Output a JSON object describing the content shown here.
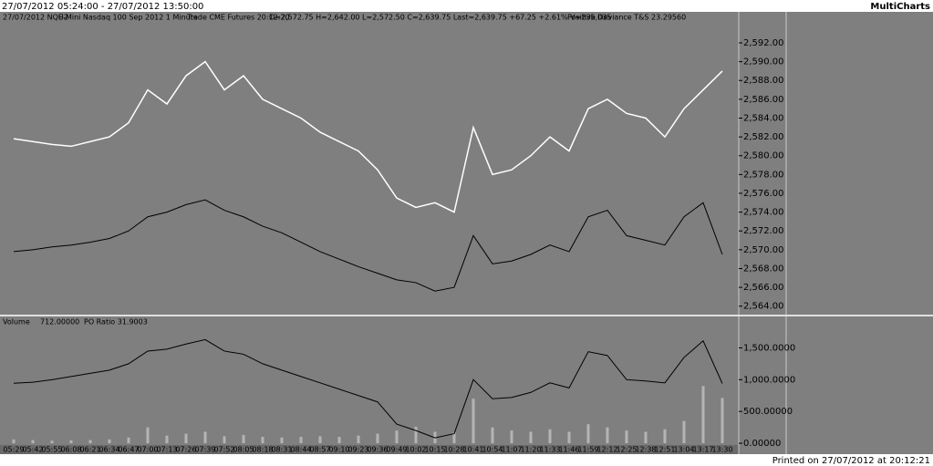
{
  "window": {
    "title": "27/07/2012 05:24:00 - 27/07/2012 13:50:00",
    "app": "MultiCharts",
    "footer": "Printed on 27/07/2012 at 20:12:21"
  },
  "chart_data": [
    {
      "type": "line",
      "info": [
        "27/07/2012 NQU2",
        "E-Mini Nasdaq 100 Sep 2012 1 Minute",
        "Trade CME Futures 20:12:20",
        "O=2,572.75 H=2,642.00 L=2,572.50 C=2,639.75 Last=2,639.75 +67.25 +2.61% V=235,035",
        "Positive Deviance T&S 23.29560"
      ],
      "series": [
        {
          "name": "NQU2",
          "color": "#ffffff",
          "values": [
            2581.8,
            2581.5,
            2581.2,
            2581.0,
            2581.5,
            2582.0,
            2583.5,
            2587,
            2585.5,
            2588.5,
            2590,
            2587,
            2588.5,
            2586,
            2585,
            2584,
            2582.5,
            2581.5,
            2580.5,
            2578.5,
            2575.5,
            2574.5,
            2575,
            2574,
            2583,
            2578,
            2578.5,
            2580,
            2582,
            2580.5,
            2585,
            2586,
            2584.5,
            2584,
            2582,
            2585,
            2587,
            2589
          ]
        },
        {
          "name": "Positive Deviance T&S",
          "color": "#000000",
          "values": [
            2569.8,
            2570.0,
            2570.3,
            2570.5,
            2570.8,
            2571.2,
            2572.0,
            2573.5,
            2574.0,
            2574.8,
            2575.3,
            2574.2,
            2573.5,
            2572.5,
            2571.8,
            2570.8,
            2569.8,
            2569.0,
            2568.2,
            2567.5,
            2566.8,
            2566.5,
            2565.6,
            2566.0,
            2571.5,
            2568.5,
            2568.8,
            2569.5,
            2570.5,
            2569.8,
            2573.5,
            2574.2,
            2571.5,
            2571.0,
            2570.5,
            2573.5,
            2575.0,
            2569.5
          ]
        }
      ],
      "ylim": [
        2563.1,
        2595.2
      ],
      "yticks": [
        {
          "value": 2564,
          "label": "2,564.00"
        },
        {
          "value": 2566,
          "label": "2,566.00"
        },
        {
          "value": 2568,
          "label": "2,568.00"
        },
        {
          "value": 2570,
          "label": "2,570.00"
        },
        {
          "value": 2572,
          "label": "2,572.00"
        },
        {
          "value": 2574,
          "label": "2,574.00"
        },
        {
          "value": 2576,
          "label": "2,576.00"
        },
        {
          "value": 2578,
          "label": "2,578.00"
        },
        {
          "value": 2580,
          "label": "2,580.00"
        },
        {
          "value": 2582,
          "label": "2,582.00"
        },
        {
          "value": 2584,
          "label": "2,584.00"
        },
        {
          "value": 2586,
          "label": "2,586.00"
        },
        {
          "value": 2588,
          "label": "2,588.00"
        },
        {
          "value": 2590,
          "label": "2,590.00"
        },
        {
          "value": 2592,
          "label": "2,592.00"
        }
      ]
    },
    {
      "type": "bar",
      "info": [
        "Volume",
        "712.00000",
        "PO Ratio 31.9003"
      ],
      "categories": [
        "05:29",
        "05:42",
        "05:55",
        "06:08",
        "06:21",
        "06:34",
        "06:47",
        "07:00",
        "07:13",
        "07:26",
        "07:39",
        "07:52",
        "08:05",
        "08:18",
        "08:31",
        "08:44",
        "08:57",
        "09:10",
        "09:23",
        "09:36",
        "09:49",
        "10:02",
        "10:15",
        "10:28",
        "10:41",
        "10:54",
        "11:07",
        "11:20",
        "11:33",
        "11:46",
        "11:59",
        "12:12",
        "12:25",
        "12:38",
        "12:51",
        "13:04",
        "13:17",
        "13:30"
      ],
      "series": [
        {
          "name": "Volume",
          "color": "#b4b4b4",
          "values": [
            60,
            50,
            40,
            45,
            50,
            60,
            90,
            250,
            120,
            150,
            180,
            110,
            130,
            100,
            90,
            100,
            110,
            100,
            120,
            150,
            200,
            260,
            180,
            170,
            700,
            250,
            200,
            180,
            220,
            180,
            300,
            250,
            200,
            180,
            220,
            350,
            900,
            712
          ]
        },
        {
          "name": "PO Ratio",
          "type": "line",
          "color": "#000000",
          "values": [
            943,
            960,
            1000,
            1050,
            1100,
            1150,
            1250,
            1450,
            1480,
            1560,
            1630,
            1450,
            1400,
            1250,
            1150,
            1050,
            950,
            850,
            750,
            650,
            300,
            200,
            85,
            150,
            1000,
            700,
            720,
            800,
            950,
            870,
            1440,
            1380,
            1000,
            980,
            950,
            1350,
            1610,
            940
          ]
        }
      ],
      "ylim": [
        -28,
        1980
      ],
      "yticks": [
        {
          "value": 0,
          "label": "0.00000"
        },
        {
          "value": 500,
          "label": "500.00000"
        },
        {
          "value": 1000,
          "label": "1,000.0000"
        },
        {
          "value": 1500,
          "label": "1,500.0000"
        }
      ]
    }
  ]
}
